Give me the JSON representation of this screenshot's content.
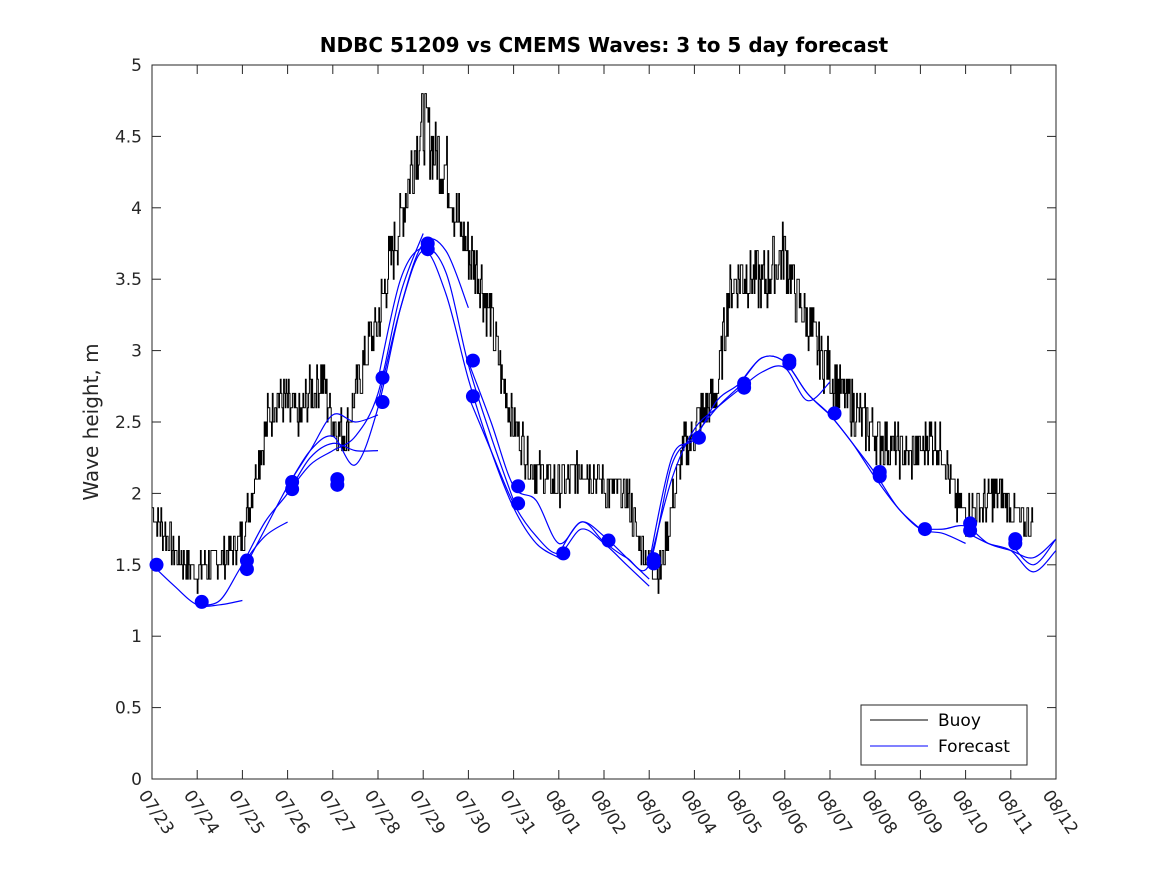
{
  "chart_data": {
    "type": "line",
    "title": "NDBC 51209 vs CMEMS Waves: 3 to 5 day forecast",
    "ylabel": "Wave height, m",
    "xlabel": "",
    "ylim": [
      0,
      5
    ],
    "yticks": [
      "0",
      "0.5",
      "1",
      "1.5",
      "2",
      "2.5",
      "3",
      "3.5",
      "4",
      "4.5",
      "5"
    ],
    "xlim_days": [
      0,
      20
    ],
    "xticks": [
      "07/23",
      "07/24",
      "07/25",
      "07/26",
      "07/27",
      "07/28",
      "07/29",
      "07/30",
      "07/31",
      "08/01",
      "08/02",
      "08/03",
      "08/04",
      "08/05",
      "08/06",
      "08/07",
      "08/08",
      "08/09",
      "08/10",
      "08/11",
      "08/12"
    ],
    "grid": false,
    "legend_position": "bottom-right",
    "colors": {
      "buoy": "#000000",
      "forecast": "#0000ff"
    },
    "series": [
      {
        "name": "Buoy",
        "x_day_offset": [
          0,
          0.25,
          0.5,
          0.75,
          1,
          1.25,
          1.5,
          1.75,
          2,
          2.25,
          2.5,
          2.75,
          3,
          3.25,
          3.5,
          3.75,
          4,
          4.25,
          4.5,
          4.75,
          5,
          5.25,
          5.5,
          5.75,
          6,
          6.25,
          6.5,
          6.75,
          7,
          7.25,
          7.5,
          7.75,
          8,
          8.25,
          8.5,
          8.75,
          9,
          9.25,
          9.5,
          9.75,
          10,
          10.25,
          10.5,
          10.75,
          11,
          11.25,
          11.5,
          11.75,
          12,
          12.25,
          12.5,
          12.75,
          13,
          13.25,
          13.5,
          13.75,
          14,
          14.25,
          14.5,
          14.75,
          15,
          15.25,
          15.5,
          15.75,
          16,
          16.25,
          16.5,
          16.75,
          17,
          17.25,
          17.5,
          17.75,
          18,
          18.25,
          18.5,
          18.75,
          19,
          19.25,
          19.5
        ],
        "values": [
          1.9,
          1.75,
          1.6,
          1.5,
          1.45,
          1.5,
          1.55,
          1.6,
          1.7,
          2.1,
          2.45,
          2.7,
          2.6,
          2.5,
          2.7,
          2.8,
          2.5,
          2.4,
          2.7,
          3.0,
          3.2,
          3.6,
          3.9,
          4.3,
          4.6,
          4.4,
          4.3,
          3.9,
          3.7,
          3.5,
          3.2,
          2.8,
          2.5,
          2.3,
          2.15,
          2.1,
          2.05,
          2.1,
          2.2,
          2.15,
          2.05,
          2.0,
          2.0,
          1.7,
          1.5,
          1.45,
          1.9,
          2.3,
          2.45,
          2.6,
          2.7,
          3.4,
          3.55,
          3.5,
          3.45,
          3.6,
          3.7,
          3.35,
          3.2,
          3.0,
          2.85,
          2.7,
          2.6,
          2.5,
          2.4,
          2.35,
          2.3,
          2.25,
          2.3,
          2.4,
          2.3,
          1.95,
          1.85,
          1.9,
          1.95,
          2.0,
          1.9,
          1.8,
          1.8
        ]
      },
      {
        "name": "Forecast",
        "runs": [
          {
            "x_day_offset": [
              0,
              0.5,
              1,
              1.5,
              2
            ],
            "values": [
              1.5,
              1.35,
              1.22,
              1.22,
              1.25
            ]
          },
          {
            "x_day_offset": [
              1,
              1.5,
              2,
              2.5,
              3
            ],
            "values": [
              1.22,
              1.25,
              1.5,
              1.7,
              1.8
            ]
          },
          {
            "x_day_offset": [
              2,
              2.5,
              3,
              3.5,
              4,
              4.5,
              5
            ],
            "values": [
              1.5,
              1.8,
              2.0,
              2.25,
              2.35,
              2.3,
              2.3
            ]
          },
          {
            "x_day_offset": [
              2,
              2.5,
              3,
              3.5,
              4,
              4.5,
              5
            ],
            "values": [
              1.45,
              1.75,
              2.05,
              2.3,
              2.55,
              2.5,
              2.55
            ]
          },
          {
            "x_day_offset": [
              3,
              3.5,
              4,
              4.5,
              5,
              5.5,
              6
            ],
            "values": [
              2.0,
              2.2,
              2.3,
              2.4,
              2.7,
              3.4,
              3.82
            ]
          },
          {
            "x_day_offset": [
              3,
              3.5,
              4,
              4.5,
              5,
              5.5,
              6,
              6.5,
              7
            ],
            "values": [
              2.05,
              2.3,
              2.4,
              2.2,
              2.6,
              3.3,
              3.75,
              3.7,
              3.3
            ]
          },
          {
            "x_day_offset": [
              5,
              5.5,
              6,
              6.5,
              7,
              7.5,
              8
            ],
            "values": [
              2.8,
              3.5,
              3.72,
              3.55,
              2.9,
              2.4,
              1.95
            ]
          },
          {
            "x_day_offset": [
              5,
              5.5,
              6,
              6.5,
              7,
              7.5,
              8,
              8.5,
              9
            ],
            "values": [
              2.64,
              3.3,
              3.7,
              3.4,
              2.8,
              2.3,
              1.9,
              1.65,
              1.55
            ]
          },
          {
            "x_day_offset": [
              7,
              7.5,
              8,
              8.5,
              9,
              9.5,
              10,
              10.5,
              11
            ],
            "values": [
              2.92,
              2.5,
              2.05,
              1.95,
              1.65,
              1.8,
              1.7,
              1.55,
              1.4
            ]
          },
          {
            "x_day_offset": [
              7,
              7.5,
              8,
              8.5,
              9,
              9.5,
              10,
              10.5,
              11
            ],
            "values": [
              2.68,
              2.3,
              1.93,
              1.7,
              1.58,
              1.75,
              1.65,
              1.5,
              1.35
            ]
          },
          {
            "x_day_offset": [
              9,
              9.5,
              10,
              10.5,
              11,
              11.5,
              12,
              12.5,
              13
            ],
            "values": [
              1.58,
              1.8,
              1.66,
              1.55,
              1.5,
              2.2,
              2.4,
              2.6,
              2.75
            ]
          },
          {
            "x_day_offset": [
              11,
              11.5,
              12,
              12.5,
              13,
              13.5,
              14,
              14.5,
              15
            ],
            "values": [
              1.52,
              2.25,
              2.38,
              2.65,
              2.77,
              2.95,
              2.92,
              2.7,
              2.55
            ]
          },
          {
            "x_day_offset": [
              11,
              11.5,
              12,
              12.5,
              13,
              13.5,
              14,
              14.5,
              15
            ],
            "values": [
              1.5,
              2.1,
              2.45,
              2.6,
              2.73,
              2.85,
              2.88,
              2.65,
              2.78
            ]
          },
          {
            "x_day_offset": [
              13,
              13.5,
              14,
              14.5,
              15,
              15.5,
              16,
              16.5,
              17
            ],
            "values": [
              2.77,
              2.95,
              2.92,
              2.7,
              2.55,
              2.35,
              2.14,
              1.9,
              1.75
            ]
          },
          {
            "x_day_offset": [
              15,
              15.5,
              16,
              16.5,
              17,
              17.5,
              18
            ],
            "values": [
              2.55,
              2.35,
              2.11,
              1.9,
              1.75,
              1.72,
              1.65
            ]
          },
          {
            "x_day_offset": [
              17,
              17.5,
              18,
              18.5,
              19,
              19.5,
              20
            ],
            "values": [
              1.75,
              1.75,
              1.77,
              1.65,
              1.6,
              1.55,
              1.68
            ]
          },
          {
            "x_day_offset": [
              18,
              18.5,
              19,
              19.5,
              20
            ],
            "values": [
              1.73,
              1.65,
              1.6,
              1.45,
              1.6
            ]
          },
          {
            "x_day_offset": [
              19,
              19.5,
              20
            ],
            "values": [
              1.65,
              1.5,
              1.68
            ]
          }
        ],
        "markers": {
          "x_day_offset": [
            0.1,
            1.1,
            2.1,
            2.1,
            3.1,
            3.1,
            4.1,
            4.1,
            5.1,
            5.1,
            6.1,
            6.1,
            7.1,
            7.1,
            8.1,
            8.1,
            9.1,
            10.1,
            11.1,
            11.1,
            12.1,
            13.1,
            13.1,
            14.1,
            14.1,
            15.1,
            16.1,
            16.1,
            17.1,
            18.1,
            18.1,
            19.1,
            19.1
          ],
          "values": [
            1.5,
            1.24,
            1.53,
            1.47,
            2.08,
            2.03,
            2.1,
            2.06,
            2.81,
            2.64,
            3.75,
            3.71,
            2.93,
            2.68,
            2.05,
            1.93,
            1.58,
            1.67,
            1.54,
            1.51,
            2.39,
            2.77,
            2.74,
            2.93,
            2.91,
            2.56,
            2.15,
            2.12,
            1.75,
            1.79,
            1.74,
            1.68,
            1.65
          ]
        }
      }
    ]
  }
}
